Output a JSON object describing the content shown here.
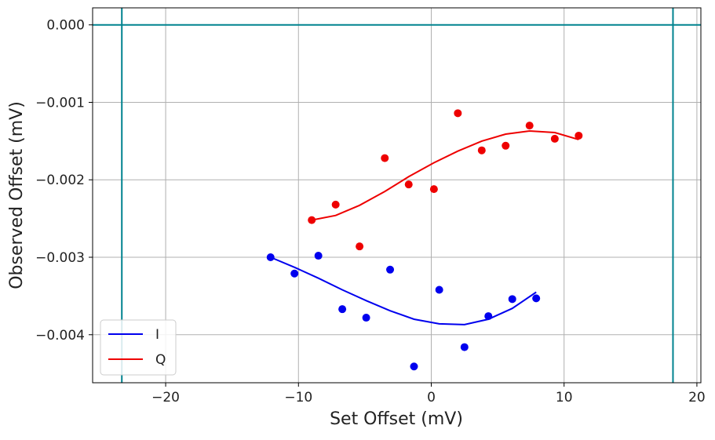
{
  "chart_data": {
    "type": "scatter",
    "xlabel": "Set Offset (mV)",
    "ylabel": "Observed Offset (mV)",
    "xlim": [
      -25.5,
      20.3
    ],
    "ylim": [
      -0.00462,
      0.00022
    ],
    "xticks": [
      -20,
      -10,
      0,
      10,
      20
    ],
    "xtick_labels": [
      "−20",
      "−10",
      "0",
      "10",
      "20"
    ],
    "yticks": [
      0.0,
      -0.001,
      -0.002,
      -0.003,
      -0.004
    ],
    "ytick_labels": [
      "0.000",
      "−0.001",
      "−0.002",
      "−0.003",
      "−0.004"
    ],
    "grid": true,
    "legend_position": "lower-left",
    "reference_lines": {
      "color": "#00838f",
      "vertical_x": [
        -23.3,
        18.2
      ],
      "horizontal_y": [
        0.0
      ]
    },
    "series": [
      {
        "name": "I",
        "color": "#0000ee",
        "points": [
          {
            "x": -12.1,
            "y": -0.003
          },
          {
            "x": -10.3,
            "y": -0.00321
          },
          {
            "x": -8.5,
            "y": -0.00298
          },
          {
            "x": -6.7,
            "y": -0.00367
          },
          {
            "x": -4.9,
            "y": -0.00378
          },
          {
            "x": -3.1,
            "y": -0.00316
          },
          {
            "x": -1.3,
            "y": -0.00441
          },
          {
            "x": 0.6,
            "y": -0.00342
          },
          {
            "x": 2.5,
            "y": -0.00416
          },
          {
            "x": 4.3,
            "y": -0.00376
          },
          {
            "x": 6.1,
            "y": -0.00354
          },
          {
            "x": 7.9,
            "y": -0.00353
          }
        ],
        "fit": [
          {
            "x": -12.1,
            "y": -0.003
          },
          {
            "x": -10.3,
            "y": -0.00313
          },
          {
            "x": -8.5,
            "y": -0.00327
          },
          {
            "x": -6.7,
            "y": -0.00342
          },
          {
            "x": -4.9,
            "y": -0.00356
          },
          {
            "x": -3.1,
            "y": -0.00369
          },
          {
            "x": -1.3,
            "y": -0.0038
          },
          {
            "x": 0.6,
            "y": -0.00386
          },
          {
            "x": 2.5,
            "y": -0.00387
          },
          {
            "x": 4.3,
            "y": -0.0038
          },
          {
            "x": 6.1,
            "y": -0.00366
          },
          {
            "x": 7.9,
            "y": -0.00345
          }
        ]
      },
      {
        "name": "Q",
        "color": "#ee0000",
        "points": [
          {
            "x": -9.0,
            "y": -0.00252
          },
          {
            "x": -7.2,
            "y": -0.00232
          },
          {
            "x": -5.4,
            "y": -0.00286
          },
          {
            "x": -3.5,
            "y": -0.00172
          },
          {
            "x": -1.7,
            "y": -0.00206
          },
          {
            "x": 0.2,
            "y": -0.00212
          },
          {
            "x": 2.0,
            "y": -0.00114
          },
          {
            "x": 3.8,
            "y": -0.00162
          },
          {
            "x": 5.6,
            "y": -0.00156
          },
          {
            "x": 7.4,
            "y": -0.0013
          },
          {
            "x": 9.3,
            "y": -0.00147
          },
          {
            "x": 11.1,
            "y": -0.00143
          }
        ],
        "fit": [
          {
            "x": -9.0,
            "y": -0.00252
          },
          {
            "x": -7.2,
            "y": -0.00246
          },
          {
            "x": -5.4,
            "y": -0.00233
          },
          {
            "x": -3.5,
            "y": -0.00215
          },
          {
            "x": -1.7,
            "y": -0.00196
          },
          {
            "x": 0.2,
            "y": -0.00178
          },
          {
            "x": 2.0,
            "y": -0.00163
          },
          {
            "x": 3.8,
            "y": -0.0015
          },
          {
            "x": 5.6,
            "y": -0.00141
          },
          {
            "x": 7.4,
            "y": -0.00137
          },
          {
            "x": 9.3,
            "y": -0.00139
          },
          {
            "x": 11.1,
            "y": -0.00148
          }
        ]
      }
    ]
  }
}
